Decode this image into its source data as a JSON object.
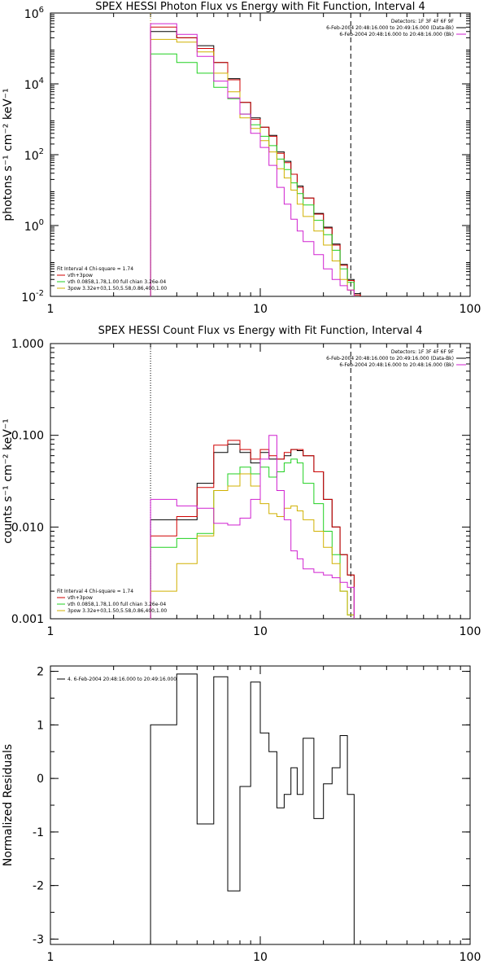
{
  "chart_data": [
    {
      "type": "line",
      "title": "SPEX HESSI Photon Flux vs Energy with Fit Function, Interval 4",
      "xlabel": "",
      "ylabel": "photons s⁻¹ cm⁻² keV⁻¹",
      "xscale": "log",
      "yscale": "log",
      "xlim": [
        1,
        100
      ],
      "ylim": [
        0.01,
        1000000
      ],
      "xticks": [
        {
          "v": 1,
          "label": "1"
        },
        {
          "v": 10,
          "label": "10"
        },
        {
          "v": 100,
          "label": "100"
        }
      ],
      "yticks": [
        {
          "v": 1000000,
          "base": "10",
          "exp": "6"
        },
        {
          "v": 10000,
          "base": "10",
          "exp": "4"
        },
        {
          "v": 100,
          "base": "10",
          "exp": "2"
        },
        {
          "v": 1,
          "base": "10",
          "exp": "0"
        },
        {
          "v": 0.01,
          "base": "10",
          "exp": "-2"
        }
      ],
      "grid": false,
      "step": true,
      "vlines": [
        {
          "x": 3,
          "style": "dotted",
          "color": "#c8a000"
        },
        {
          "x": 27,
          "style": "dashed",
          "color": "#000000"
        }
      ],
      "legend_top_right": [
        "Detectors: 1F 3F 4F 6F 9F",
        "6-Feb-2004 20:48:16.000 to 20:49:16.000 (Data-Bk)",
        "6-Feb-2004 20:48:16.000 to 20:48:16.000 (Bk)"
      ],
      "legend_top_right_colors": [
        "",
        "#000000",
        "#d020d0"
      ],
      "legend_bottom_left": [
        "Fit Interval 4   Chi-square = 1.74",
        "vth+3pow",
        "vth 0.0858,1.78,1.00  full chian 3.26e-04",
        "3pow 3.32e+03,1.50,5.58,0.86,400,1.00"
      ],
      "legend_bottom_left_colors": [
        "",
        "#d00000",
        "#20d020",
        "#d0b000"
      ],
      "edges": [
        3,
        4,
        5,
        6,
        7,
        8,
        9,
        10,
        11,
        12,
        13,
        14,
        15,
        16,
        18,
        20,
        22,
        24,
        26,
        28,
        30
      ],
      "series": [
        {
          "name": "Data-Bk",
          "color": "#000000",
          "values": [
            300000,
            200000,
            120000,
            40000,
            14000,
            3000,
            1100,
            600,
            350,
            120,
            65,
            28,
            13,
            6,
            2.2,
            0.9,
            0.3,
            0.08,
            0.03,
            0.012
          ]
        },
        {
          "name": "vth+3pow",
          "color": "#d00000",
          "values": [
            400000,
            200000,
            100000,
            40000,
            13000,
            3000,
            1000,
            600,
            330,
            110,
            60,
            28,
            12,
            6,
            2.1,
            0.85,
            0.28,
            0.075,
            0.028,
            0.011
          ]
        },
        {
          "name": "vth",
          "color": "#20d020",
          "values": [
            70000,
            40000,
            20000,
            8000,
            3800,
            1400,
            700,
            330,
            180,
            75,
            38,
            16,
            8,
            3.8,
            1.4,
            0.55,
            0.2,
            0.06,
            0.025,
            0
          ]
        },
        {
          "name": "3pow",
          "color": "#d0b000",
          "values": [
            180000,
            150000,
            80000,
            20000,
            6000,
            1100,
            550,
            250,
            120,
            40,
            22,
            10,
            4,
            1.8,
            0.7,
            0.28,
            0.1,
            0.03,
            0.015,
            0
          ]
        },
        {
          "name": "Bk",
          "color": "#d020d0",
          "values": [
            500000,
            250000,
            60000,
            12000,
            4000,
            1400,
            400,
            160,
            50,
            12,
            4,
            1.5,
            0.7,
            0.35,
            0.15,
            0.06,
            0.03,
            0.02,
            0.015,
            0
          ]
        }
      ]
    },
    {
      "type": "line",
      "title": "SPEX HESSI Count Flux vs Energy with Fit Function, Interval 4",
      "xlabel": "",
      "ylabel": "counts s⁻¹ cm⁻² keV⁻¹",
      "xscale": "log",
      "yscale": "log",
      "xlim": [
        1,
        100
      ],
      "ylim": [
        0.001,
        1
      ],
      "xticks": [
        {
          "v": 1,
          "label": "1"
        },
        {
          "v": 10,
          "label": "10"
        },
        {
          "v": 100,
          "label": "100"
        }
      ],
      "yticks": [
        {
          "v": 1,
          "label": "1.000"
        },
        {
          "v": 0.1,
          "label": "0.100"
        },
        {
          "v": 0.01,
          "label": "0.010"
        },
        {
          "v": 0.001,
          "label": "0.001"
        }
      ],
      "grid": false,
      "step": true,
      "vlines": [
        {
          "x": 3,
          "style": "dotted",
          "color": "#000000"
        },
        {
          "x": 27,
          "style": "dashed",
          "color": "#000000"
        }
      ],
      "legend_top_right": [
        "Detectors: 1F 3F 4F 6F 9F",
        "6-Feb-2004 20:48:16.000 to 20:49:16.000 (Data-Bk)",
        "6-Feb-2004 20:48:16.000 to 20:48:16.000 (Bk)"
      ],
      "legend_top_right_colors": [
        "",
        "#000000",
        "#d020d0"
      ],
      "legend_bottom_left": [
        "Fit Interval 4   Chi-square = 1.74",
        "vth+3pow",
        "vth 0.0858,1.78,1.00  full chian 3.26e-04",
        "3pow 3.32e+03,1.50,5.58,0.86,400,1.00"
      ],
      "legend_bottom_left_colors": [
        "",
        "#d00000",
        "#20d020",
        "#d0b000"
      ],
      "edges": [
        3,
        4,
        5,
        6,
        7,
        8,
        9,
        10,
        11,
        12,
        13,
        14,
        15,
        16,
        18,
        20,
        22,
        24,
        26,
        28,
        30
      ],
      "series": [
        {
          "name": "Data-Bk",
          "color": "#000000",
          "values": [
            0.012,
            0.012,
            0.03,
            0.065,
            0.08,
            0.065,
            0.05,
            0.065,
            0.055,
            0.055,
            0.06,
            0.07,
            0.068,
            0.06,
            0.04,
            0.02,
            0.01,
            0.005,
            0.003,
            0
          ]
        },
        {
          "name": "vth+3pow",
          "color": "#d00000",
          "values": [
            0.008,
            0.013,
            0.027,
            0.078,
            0.088,
            0.07,
            0.055,
            0.07,
            0.06,
            0.055,
            0.065,
            0.07,
            0.07,
            0.06,
            0.04,
            0.02,
            0.01,
            0.005,
            0.003,
            0
          ]
        },
        {
          "name": "vth",
          "color": "#20d020",
          "values": [
            0.006,
            0.0075,
            0.0085,
            0.025,
            0.038,
            0.045,
            0.038,
            0.045,
            0.035,
            0.04,
            0.05,
            0.055,
            0.05,
            0.03,
            0.018,
            0.009,
            0.005,
            0.002,
            0.0011,
            0
          ]
        },
        {
          "name": "3pow",
          "color": "#d0b000",
          "values": [
            0.002,
            0.004,
            0.008,
            0.025,
            0.028,
            0.038,
            0.028,
            0.018,
            0.014,
            0.013,
            0.016,
            0.017,
            0.015,
            0.012,
            0.009,
            0.006,
            0.004,
            0.002,
            0.0011,
            0
          ]
        },
        {
          "name": "Bk",
          "color": "#d020d0",
          "values": [
            0.02,
            0.017,
            0.016,
            0.011,
            0.0105,
            0.0125,
            0.02,
            0.055,
            0.1,
            0.025,
            0.012,
            0.0055,
            0.0045,
            0.0035,
            0.0032,
            0.003,
            0.0028,
            0.0025,
            0.0022,
            0
          ]
        }
      ]
    },
    {
      "type": "line",
      "title": "",
      "xlabel": "",
      "ylabel": "Normalized Residuals",
      "xscale": "log",
      "yscale": "linear",
      "xlim": [
        1,
        100
      ],
      "ylim": [
        -3.1,
        2.1
      ],
      "xticks": [
        {
          "v": 1,
          "label": "1"
        },
        {
          "v": 10,
          "label": "10"
        },
        {
          "v": 100,
          "label": "100"
        }
      ],
      "yticks": [
        {
          "v": 2,
          "label": "2"
        },
        {
          "v": 1,
          "label": "1"
        },
        {
          "v": 0,
          "label": "0"
        },
        {
          "v": -1,
          "label": "-1"
        },
        {
          "v": -2,
          "label": "-2"
        },
        {
          "v": -3,
          "label": "-3"
        }
      ],
      "grid": false,
      "step": true,
      "legend_top_left": [
        "4.  6-Feb-2004 20:48:16.000 to 20:49:16.000"
      ],
      "edges": [
        3,
        4,
        5,
        6,
        7,
        8,
        9,
        10,
        11,
        12,
        13,
        14,
        15,
        16,
        18,
        20,
        22,
        24,
        26,
        28
      ],
      "series": [
        {
          "name": "residuals",
          "color": "#000000",
          "values": [
            1.0,
            1.95,
            -0.85,
            1.9,
            -2.1,
            -0.15,
            1.8,
            0.85,
            0.5,
            -0.55,
            -0.3,
            0.2,
            -0.3,
            0.75,
            -0.75,
            -0.1,
            0.2,
            0.8,
            -0.3
          ]
        }
      ]
    }
  ]
}
